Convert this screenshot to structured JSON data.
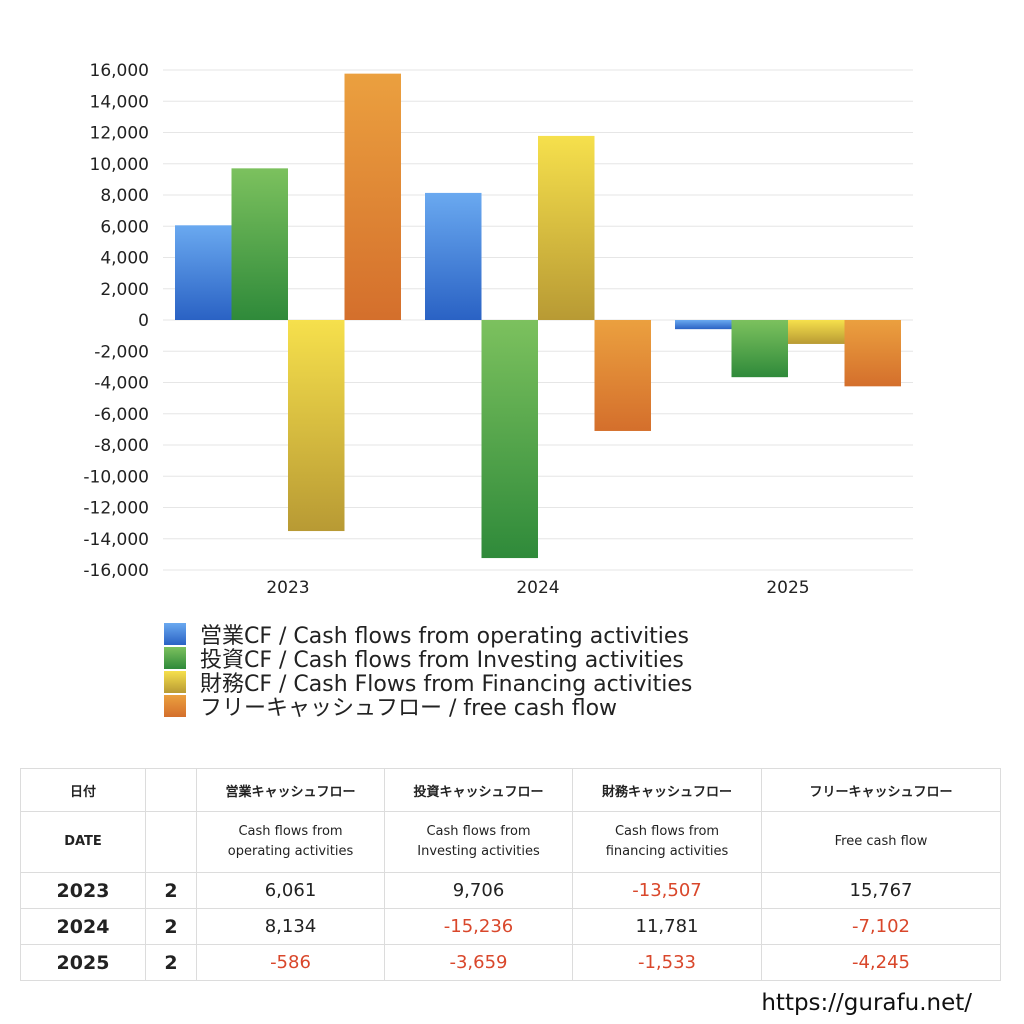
{
  "chart_data": {
    "type": "bar",
    "categories": [
      "2023",
      "2024",
      "2025"
    ],
    "series": [
      {
        "name": "営業CF / Cash flows from operating activities",
        "values": [
          6061,
          8134,
          -586
        ],
        "color_top": "#6aa9f0",
        "color_bottom": "#2a62c4"
      },
      {
        "name": "投資CF / Cash flows from Investing activities",
        "values": [
          9706,
          -15236,
          -3659
        ],
        "color_top": "#7cc15e",
        "color_bottom": "#2f8a3a"
      },
      {
        "name": "財務CF / Cash Flows from Financing activities",
        "values": [
          -13507,
          11781,
          -1533
        ],
        "color_top": "#f6e04c",
        "color_bottom": "#b89a34"
      },
      {
        "name": "フリーキャッシュフロー / free cash flow",
        "values": [
          15767,
          -7102,
          -4245
        ],
        "color_top": "#eba03f",
        "color_bottom": "#d46f2c"
      }
    ],
    "ylim": [
      -16000,
      16000
    ],
    "yticks": [
      "16,000",
      "14,000",
      "12,000",
      "10,000",
      "8,000",
      "6,000",
      "4,000",
      "2,000",
      "0",
      "-2,000",
      "-4,000",
      "-6,000",
      "-8,000",
      "-10,000",
      "-12,000",
      "-14,000",
      "-16,000"
    ],
    "ytick_values": [
      16000,
      14000,
      12000,
      10000,
      8000,
      6000,
      4000,
      2000,
      0,
      -2000,
      -4000,
      -6000,
      -8000,
      -10000,
      -12000,
      -14000,
      -16000
    ],
    "grid": true,
    "legend": "bottom"
  },
  "table": {
    "header_jp": [
      "日付",
      "",
      "営業キャッシュフロー",
      "投資キャッシュフロー",
      "財務キャッシュフロー",
      "フリーキャッシュフロー"
    ],
    "header_en": [
      "DATE",
      "",
      "Cash flows from\noperating activities",
      "Cash flows from\nInvesting activities",
      "Cash flows from\nfinancing activities",
      "Free cash flow"
    ],
    "rows": [
      {
        "year": "2023",
        "count": "2",
        "values": [
          "6,061",
          "9,706",
          "-13,507",
          "15,767"
        ]
      },
      {
        "year": "2024",
        "count": "2",
        "values": [
          "8,134",
          "-15,236",
          "11,781",
          "-7,102"
        ]
      },
      {
        "year": "2025",
        "count": "2",
        "values": [
          "-586",
          "-3,659",
          "-1,533",
          "-4,245"
        ]
      }
    ]
  },
  "footer": {
    "site": "https://gurafu.net/"
  }
}
